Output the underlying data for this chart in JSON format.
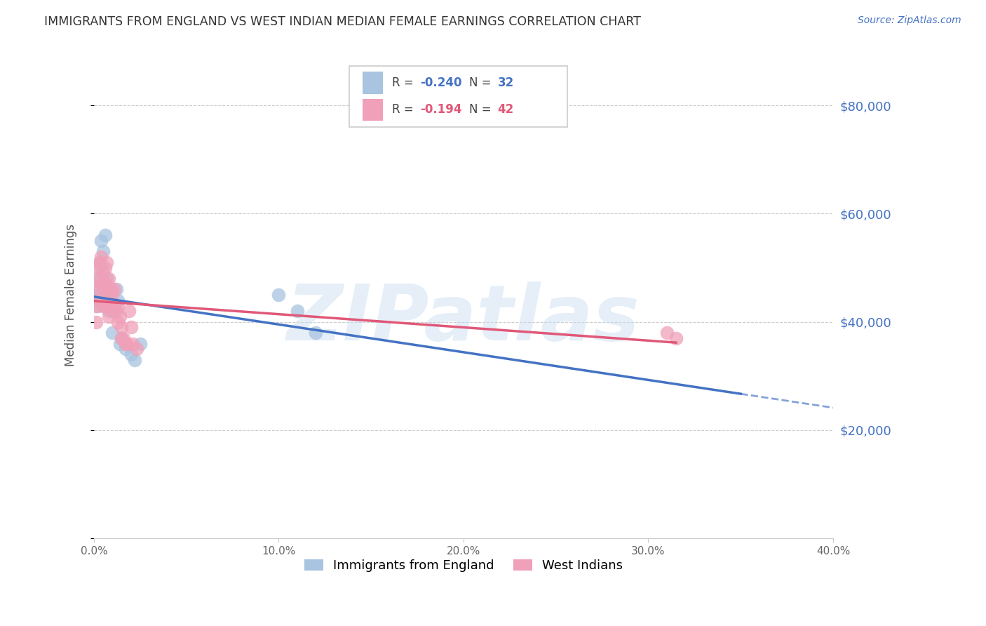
{
  "title": "IMMIGRANTS FROM ENGLAND VS WEST INDIAN MEDIAN FEMALE EARNINGS CORRELATION CHART",
  "source": "Source: ZipAtlas.com",
  "ylabel": "Median Female Earnings",
  "yticks": [
    0,
    20000,
    40000,
    60000,
    80000
  ],
  "ytick_labels": [
    "",
    "$20,000",
    "$40,000",
    "$60,000",
    "$80,000"
  ],
  "xlim": [
    0.0,
    0.4
  ],
  "ylim": [
    0,
    90000
  ],
  "england_R": -0.24,
  "england_N": 32,
  "westindian_R": -0.194,
  "westindian_N": 42,
  "england_color": "#a8c4e0",
  "westindian_color": "#f0a0b8",
  "england_line_color": "#4472c4",
  "westindian_line_color": "#e05878",
  "axis_label_color": "#4472c4",
  "title_color": "#333333",
  "watermark": "ZIPatlas",
  "watermark_color": "#c8ddf0",
  "england_x": [
    0.001,
    0.001,
    0.002,
    0.002,
    0.003,
    0.003,
    0.004,
    0.004,
    0.004,
    0.005,
    0.005,
    0.006,
    0.006,
    0.007,
    0.007,
    0.008,
    0.008,
    0.009,
    0.01,
    0.01,
    0.011,
    0.012,
    0.013,
    0.014,
    0.015,
    0.017,
    0.02,
    0.022,
    0.025,
    0.1,
    0.11,
    0.12
  ],
  "england_y": [
    44000,
    46000,
    48000,
    43000,
    51000,
    45000,
    55000,
    50000,
    44000,
    53000,
    47000,
    56000,
    45000,
    48000,
    43000,
    46000,
    42000,
    44000,
    43000,
    38000,
    42000,
    46000,
    44000,
    36000,
    37000,
    35000,
    34000,
    33000,
    36000,
    45000,
    42000,
    38000
  ],
  "westindian_x": [
    0.001,
    0.001,
    0.002,
    0.002,
    0.003,
    0.003,
    0.003,
    0.004,
    0.004,
    0.005,
    0.005,
    0.005,
    0.006,
    0.006,
    0.006,
    0.007,
    0.007,
    0.007,
    0.008,
    0.008,
    0.008,
    0.009,
    0.009,
    0.01,
    0.01,
    0.011,
    0.011,
    0.012,
    0.013,
    0.013,
    0.014,
    0.015,
    0.015,
    0.016,
    0.017,
    0.018,
    0.019,
    0.02,
    0.021,
    0.023,
    0.31,
    0.315
  ],
  "westindian_y": [
    43000,
    40000,
    50000,
    46000,
    51000,
    48000,
    44000,
    52000,
    47000,
    49000,
    46000,
    43000,
    50000,
    47000,
    43000,
    51000,
    47000,
    44000,
    48000,
    45000,
    41000,
    46000,
    43000,
    45000,
    42000,
    46000,
    43000,
    42000,
    43000,
    40000,
    41000,
    39000,
    37000,
    37000,
    36000,
    36000,
    42000,
    39000,
    36000,
    35000,
    38000,
    37000
  ],
  "legend_england_label": "Immigrants from England",
  "legend_westindian_label": "West Indians",
  "eng_line_x_solid_end": 0.35,
  "eng_line_x_dash_end": 0.4,
  "wi_line_x_end": 0.315
}
